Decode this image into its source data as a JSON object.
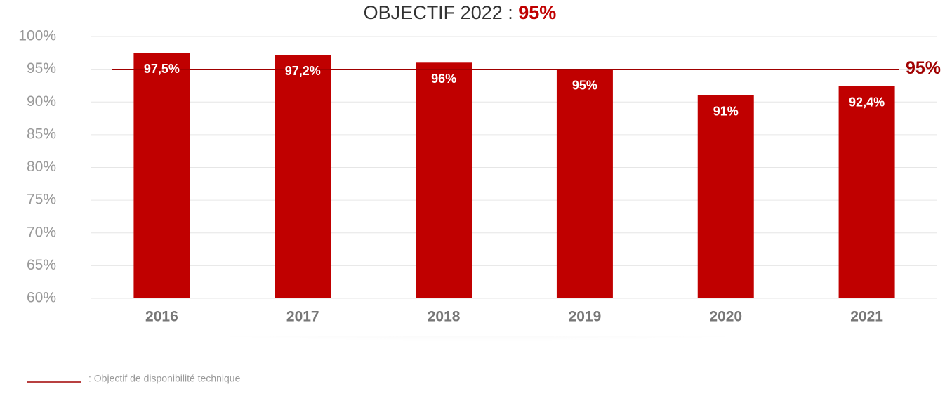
{
  "chart_data": {
    "type": "bar",
    "title": "OBJECTIF 2022 :",
    "categories": [
      "2016",
      "2017",
      "2018",
      "2019",
      "2020",
      "2021"
    ],
    "values": [
      97.5,
      97.2,
      96,
      95,
      91,
      92.4
    ],
    "value_labels": [
      "97,5%",
      "97,2%",
      "96%",
      "95%",
      "91%",
      "92,4%"
    ],
    "color": "#c00000",
    "ylim": [
      60,
      100
    ],
    "yticks": [
      {
        "value": 60,
        "label": "60%"
      },
      {
        "value": 65,
        "label": "65%"
      },
      {
        "value": 70,
        "label": "70%"
      },
      {
        "value": 75,
        "label": "75%"
      },
      {
        "value": 80,
        "label": "80%"
      },
      {
        "value": 85,
        "label": "85%"
      },
      {
        "value": 90,
        "label": "90%"
      },
      {
        "value": 95,
        "label": "95%"
      },
      {
        "value": 100,
        "label": "100%"
      }
    ],
    "grid": true,
    "target_line": {
      "value": 95,
      "label": "95%",
      "color": "#a00000",
      "legend": ": Objectif de disponibilité technique"
    }
  }
}
